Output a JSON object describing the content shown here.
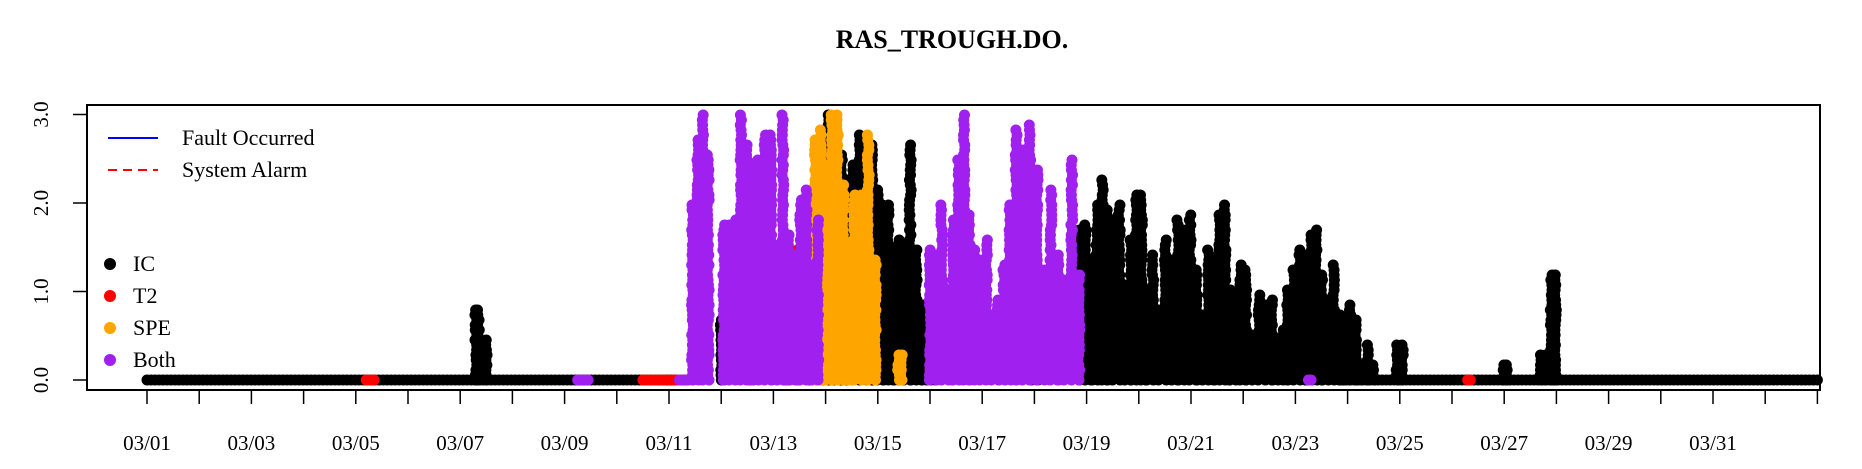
{
  "chart_data": {
    "type": "scatter",
    "title": "RAS_TROUGH.DO.",
    "xlabel": "",
    "ylabel": "",
    "x_start": "03/01",
    "x_end": "04/01",
    "ylim": [
      0,
      3.05
    ],
    "x_ticks": [
      {
        "day": 0,
        "label": "03/01"
      },
      {
        "day": 1,
        "label": ""
      },
      {
        "day": 2,
        "label": "03/03"
      },
      {
        "day": 3,
        "label": ""
      },
      {
        "day": 4,
        "label": "03/05"
      },
      {
        "day": 5,
        "label": ""
      },
      {
        "day": 6,
        "label": "03/07"
      },
      {
        "day": 7,
        "label": ""
      },
      {
        "day": 8,
        "label": "03/09"
      },
      {
        "day": 9,
        "label": ""
      },
      {
        "day": 10,
        "label": "03/11"
      },
      {
        "day": 11,
        "label": ""
      },
      {
        "day": 12,
        "label": "03/13"
      },
      {
        "day": 13,
        "label": ""
      },
      {
        "day": 14,
        "label": "03/15"
      },
      {
        "day": 15,
        "label": ""
      },
      {
        "day": 16,
        "label": "03/17"
      },
      {
        "day": 17,
        "label": ""
      },
      {
        "day": 18,
        "label": "03/19"
      },
      {
        "day": 19,
        "label": ""
      },
      {
        "day": 20,
        "label": "03/21"
      },
      {
        "day": 21,
        "label": ""
      },
      {
        "day": 22,
        "label": "03/23"
      },
      {
        "day": 23,
        "label": ""
      },
      {
        "day": 24,
        "label": "03/25"
      },
      {
        "day": 25,
        "label": ""
      },
      {
        "day": 26,
        "label": "03/27"
      },
      {
        "day": 27,
        "label": ""
      },
      {
        "day": 28,
        "label": "03/29"
      },
      {
        "day": 29,
        "label": ""
      },
      {
        "day": 30,
        "label": "03/31"
      },
      {
        "day": 31,
        "label": ""
      },
      {
        "day": 32,
        "label": ""
      }
    ],
    "y_ticks": [
      {
        "value": 0,
        "label": "0.0"
      },
      {
        "value": 1,
        "label": "1.0"
      },
      {
        "value": 2,
        "label": "2.0"
      },
      {
        "value": 3,
        "label": "3.0"
      }
    ],
    "legend_lines": [
      {
        "label": "Fault Occurred",
        "color": "#0000ff",
        "dash": "solid"
      },
      {
        "label": "System Alarm",
        "color": "#ff0000",
        "dash": "dashed"
      }
    ],
    "legend_points": [
      {
        "label": "IC",
        "color": "#000000"
      },
      {
        "label": "T2",
        "color": "#ff0000"
      },
      {
        "label": "SPE",
        "color": "#ffa500"
      },
      {
        "label": "Both",
        "color": "#a020f0"
      }
    ],
    "series": [
      {
        "name": "IC",
        "color": "#000000",
        "segments": [
          {
            "from": 0.0,
            "to": 10.35,
            "type": "base"
          },
          {
            "from": 6.3,
            "to": 6.35,
            "type": "spike",
            "max": 0.8
          },
          {
            "from": 6.36,
            "to": 6.5,
            "type": "spike",
            "max": 0.5
          },
          {
            "from": 11.0,
            "to": 11.05,
            "type": "spike",
            "max": 0.7
          },
          {
            "from": 12.7,
            "to": 12.78,
            "type": "range",
            "max": 2.0
          },
          {
            "from": 12.95,
            "to": 13.15,
            "type": "range",
            "max": 3.0
          },
          {
            "from": 13.15,
            "to": 13.3,
            "type": "range",
            "max": 2.5
          },
          {
            "from": 13.3,
            "to": 13.9,
            "type": "range",
            "max": 2.8
          },
          {
            "from": 13.9,
            "to": 14.1,
            "type": "range",
            "max": 2.2
          },
          {
            "from": 14.1,
            "to": 14.3,
            "type": "range",
            "max": 2.0
          },
          {
            "from": 14.3,
            "to": 14.48,
            "type": "range",
            "max": 1.6
          },
          {
            "from": 14.48,
            "to": 14.62,
            "type": "range",
            "max": 2.7
          },
          {
            "from": 14.62,
            "to": 14.85,
            "type": "range",
            "max": 1.5
          },
          {
            "from": 16.95,
            "to": 17.05,
            "type": "range",
            "max": 0.9
          },
          {
            "from": 17.85,
            "to": 18.1,
            "type": "range",
            "max": 1.8
          },
          {
            "from": 18.1,
            "to": 18.4,
            "type": "range",
            "max": 2.3
          },
          {
            "from": 18.4,
            "to": 18.85,
            "type": "range",
            "max": 2.0
          },
          {
            "from": 18.85,
            "to": 19.15,
            "type": "range",
            "max": 2.1
          },
          {
            "from": 19.15,
            "to": 19.75,
            "type": "range",
            "max": 1.6
          },
          {
            "from": 19.75,
            "to": 20.1,
            "type": "range",
            "max": 1.9
          },
          {
            "from": 20.1,
            "to": 20.45,
            "type": "range",
            "max": 1.5
          },
          {
            "from": 20.45,
            "to": 20.75,
            "type": "range",
            "max": 2.0
          },
          {
            "from": 20.75,
            "to": 21.05,
            "type": "range",
            "max": 1.3
          },
          {
            "from": 21.05,
            "to": 21.55,
            "type": "range",
            "max": 1.0
          },
          {
            "from": 21.55,
            "to": 21.85,
            "type": "range",
            "max": 0.6
          },
          {
            "from": 21.85,
            "to": 22.2,
            "type": "range",
            "max": 1.5
          },
          {
            "from": 22.2,
            "to": 22.5,
            "type": "range",
            "max": 1.7
          },
          {
            "from": 22.5,
            "to": 22.85,
            "type": "range",
            "max": 1.3
          },
          {
            "from": 22.85,
            "to": 23.15,
            "type": "range",
            "max": 0.9
          },
          {
            "from": 23.15,
            "to": 23.5,
            "type": "range",
            "max": 0.4
          },
          {
            "from": 14.85,
            "to": 15.1,
            "type": "base"
          },
          {
            "from": 22.9,
            "to": 32.0,
            "type": "base"
          },
          {
            "from": 23.95,
            "to": 24.05,
            "type": "spike",
            "max": 0.4
          },
          {
            "from": 26.0,
            "to": 26.05,
            "type": "spike",
            "max": 0.2
          },
          {
            "from": 26.7,
            "to": 26.8,
            "type": "spike",
            "max": 0.3
          },
          {
            "from": 26.9,
            "to": 26.98,
            "type": "spike",
            "max": 1.2
          }
        ]
      },
      {
        "name": "T2",
        "color": "#ff0000",
        "segments": [
          {
            "from": 4.2,
            "to": 4.35,
            "type": "base"
          },
          {
            "from": 9.5,
            "to": 9.9,
            "type": "base"
          },
          {
            "from": 10.0,
            "to": 10.35,
            "type": "base"
          },
          {
            "from": 11.55,
            "to": 11.6,
            "type": "spike",
            "max": 1.7
          },
          {
            "from": 12.2,
            "to": 12.25,
            "type": "spike",
            "max": 1.0
          },
          {
            "from": 12.45,
            "to": 12.5,
            "type": "spike",
            "max": 1.5
          },
          {
            "from": 25.3,
            "to": 25.35,
            "type": "base"
          }
        ]
      },
      {
        "name": "SPE",
        "color": "#ffa500",
        "segments": [
          {
            "from": 12.8,
            "to": 13.55,
            "type": "range",
            "max": 3.05
          },
          {
            "from": 13.55,
            "to": 13.95,
            "type": "range",
            "max": 2.8
          },
          {
            "from": 14.4,
            "to": 14.45,
            "type": "spike",
            "max": 0.3
          }
        ]
      },
      {
        "name": "Both",
        "color": "#a020f0",
        "segments": [
          {
            "from": 8.25,
            "to": 8.45,
            "type": "base"
          },
          {
            "from": 10.2,
            "to": 10.45,
            "type": "base"
          },
          {
            "from": 10.45,
            "to": 10.75,
            "type": "range",
            "max": 3.05
          },
          {
            "from": 11.05,
            "to": 11.6,
            "type": "range",
            "max": 3.05
          },
          {
            "from": 11.6,
            "to": 11.95,
            "type": "range",
            "max": 2.8
          },
          {
            "from": 11.95,
            "to": 12.3,
            "type": "range",
            "max": 3.05
          },
          {
            "from": 12.3,
            "to": 12.85,
            "type": "range",
            "max": 2.2
          },
          {
            "from": 15.0,
            "to": 15.45,
            "type": "range",
            "max": 2.0
          },
          {
            "from": 15.45,
            "to": 15.75,
            "type": "range",
            "max": 3.05
          },
          {
            "from": 15.75,
            "to": 16.3,
            "type": "range",
            "max": 1.6
          },
          {
            "from": 16.3,
            "to": 16.65,
            "type": "range",
            "max": 2.0
          },
          {
            "from": 16.65,
            "to": 17.05,
            "type": "range",
            "max": 2.9
          },
          {
            "from": 17.05,
            "to": 17.45,
            "type": "range",
            "max": 2.2
          },
          {
            "from": 17.45,
            "to": 17.85,
            "type": "range",
            "max": 2.5
          },
          {
            "from": 22.25,
            "to": 22.3,
            "type": "base"
          }
        ]
      }
    ]
  }
}
